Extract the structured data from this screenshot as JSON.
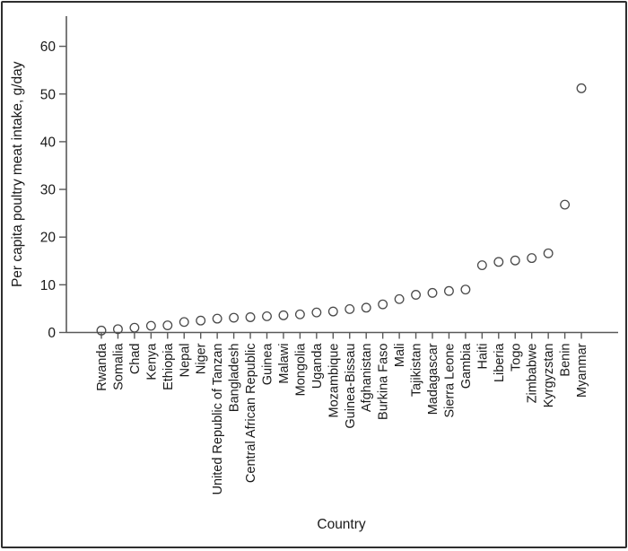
{
  "figure": {
    "xlabel": "Country",
    "ylabel": "Per capita poultry meat intake, g/day"
  },
  "colors": {
    "frame_border": "#2e2e2e",
    "axis_line": "#595959",
    "tick_line": "#595959",
    "marker_stroke": "#4a4a4a",
    "text": "#1a1a1a",
    "background": "#ffffff"
  },
  "chart_data": {
    "type": "scatter",
    "title": "",
    "xlabel": "Country",
    "ylabel": "Per capita poultry meat intake, g/day",
    "ylim": [
      0,
      66
    ],
    "yticks": [
      0,
      10,
      20,
      30,
      40,
      50,
      60
    ],
    "grid": false,
    "legend": "none",
    "marker": "open-circle",
    "categories": [
      "Rwanda",
      "Somalia",
      "Chad",
      "Kenya",
      "Ethiopia",
      "Nepal",
      "Niger",
      "United Republic of Tanzan",
      "Bangladesh",
      "Central African Republic",
      "Guinea",
      "Malawi",
      "Mongolia",
      "Uganda",
      "Mozambique",
      "Guinea-Bissau",
      "Afghanistan",
      "Burkina Faso",
      "Mali",
      "Tajikistan",
      "Madagascar",
      "Sierra Leone",
      "Gambia",
      "Haiti",
      "Liberia",
      "Togo",
      "Zimbabwe",
      "Kyrgyzstan",
      "Benin",
      "Myanmar"
    ],
    "values": [
      0.4,
      0.7,
      1.0,
      1.4,
      1.5,
      2.2,
      2.5,
      2.9,
      3.1,
      3.2,
      3.4,
      3.6,
      3.8,
      4.2,
      4.4,
      4.9,
      5.2,
      5.9,
      7.0,
      7.9,
      8.3,
      8.7,
      9.0,
      14.1,
      14.8,
      15.1,
      15.6,
      16.6,
      26.8,
      51.2
    ]
  }
}
